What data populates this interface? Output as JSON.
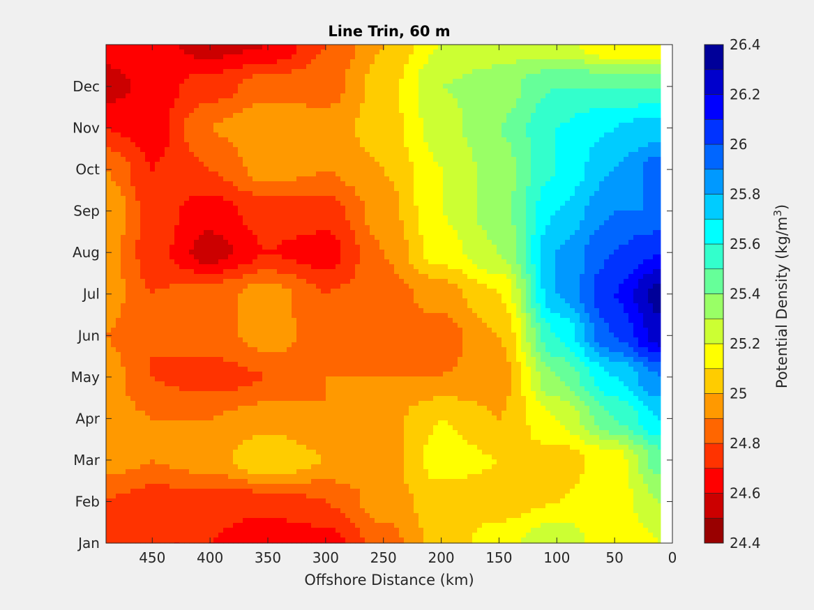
{
  "chart_data": {
    "type": "heatmap",
    "subtype": "filled-contour",
    "title": "Line Trin, 60 m",
    "xlabel": "Offshore Distance (km)",
    "ylabel": "",
    "x_reversed": true,
    "xlim": [
      490,
      0
    ],
    "xticks": [
      450,
      400,
      350,
      300,
      250,
      200,
      150,
      100,
      50,
      0
    ],
    "yticks": [
      "Jan",
      "Feb",
      "Mar",
      "Apr",
      "May",
      "Jun",
      "Jul",
      "Aug",
      "Sep",
      "Oct",
      "Nov",
      "Dec"
    ],
    "colorbar": {
      "label": "Potential Density (kg/m",
      "label_sup": "3",
      "label_end": ")",
      "range": [
        24.4,
        26.4
      ],
      "levels": [
        24.4,
        24.5,
        24.6,
        24.7,
        24.8,
        24.9,
        25.0,
        25.1,
        25.2,
        25.3,
        25.4,
        25.5,
        25.6,
        25.7,
        25.8,
        25.9,
        26.0,
        26.1,
        26.2,
        26.3,
        26.4
      ],
      "tick_labels": [
        "24.4",
        "24.6",
        "24.8",
        "25",
        "25.2",
        "25.4",
        "25.6",
        "25.8",
        "26",
        "26.2",
        "26.4"
      ],
      "colors": [
        "#990000",
        "#cc0000",
        "#ff0000",
        "#ff3300",
        "#ff6600",
        "#ff9900",
        "#ffcc00",
        "#ffff00",
        "#ccff33",
        "#99ff66",
        "#66ff99",
        "#33ffcc",
        "#00ffff",
        "#00ccff",
        "#0099ff",
        "#0066ff",
        "#0033ff",
        "#0000ff",
        "#0000cc",
        "#000099"
      ]
    },
    "grid_x_km": [
      490,
      450,
      400,
      350,
      300,
      250,
      200,
      150,
      100,
      50,
      10
    ],
    "grid_months": [
      "Jan",
      "Feb",
      "Mar",
      "Apr",
      "May",
      "Jun",
      "Jul",
      "Aug",
      "Sep",
      "Oct",
      "Nov",
      "Dec",
      "Dec+"
    ],
    "density_grid": [
      [
        24.75,
        24.7,
        24.7,
        24.6,
        24.65,
        24.85,
        25.05,
        25.15,
        25.3,
        25.1,
        25.2
      ],
      [
        24.8,
        24.75,
        24.75,
        24.75,
        24.8,
        24.95,
        25.05,
        25.05,
        25.1,
        25.15,
        25.3
      ],
      [
        24.95,
        24.9,
        24.95,
        25.1,
        25.0,
        24.95,
        25.15,
        25.1,
        25.05,
        25.15,
        25.45
      ],
      [
        24.95,
        24.9,
        24.9,
        24.95,
        24.9,
        24.95,
        25.1,
        25.0,
        25.2,
        25.5,
        25.7
      ],
      [
        24.95,
        24.8,
        24.75,
        24.8,
        24.9,
        24.9,
        24.9,
        24.95,
        25.4,
        25.7,
        25.9
      ],
      [
        24.9,
        24.8,
        24.85,
        24.95,
        24.85,
        24.8,
        24.85,
        25.0,
        25.6,
        26.0,
        26.25
      ],
      [
        24.95,
        24.8,
        24.85,
        24.95,
        24.8,
        24.85,
        24.95,
        25.1,
        25.8,
        26.1,
        26.35
      ],
      [
        24.95,
        24.75,
        24.55,
        24.7,
        24.65,
        24.9,
        25.15,
        25.3,
        25.8,
        26.0,
        26.1
      ],
      [
        25.0,
        24.75,
        24.65,
        24.75,
        24.75,
        24.95,
        25.2,
        25.35,
        25.7,
        25.9,
        25.9
      ],
      [
        24.9,
        24.7,
        24.8,
        24.95,
        24.9,
        25.0,
        25.2,
        25.35,
        25.6,
        25.8,
        25.95
      ],
      [
        24.7,
        24.65,
        24.9,
        25.0,
        24.95,
        25.05,
        25.25,
        25.4,
        25.6,
        25.7,
        25.75
      ],
      [
        24.55,
        24.65,
        24.75,
        24.85,
        24.85,
        25.05,
        25.3,
        25.35,
        25.5,
        25.5,
        25.5
      ],
      [
        24.65,
        24.65,
        24.55,
        24.6,
        24.8,
        25.0,
        25.2,
        25.25,
        25.25,
        25.1,
        25.1
      ]
    ]
  }
}
